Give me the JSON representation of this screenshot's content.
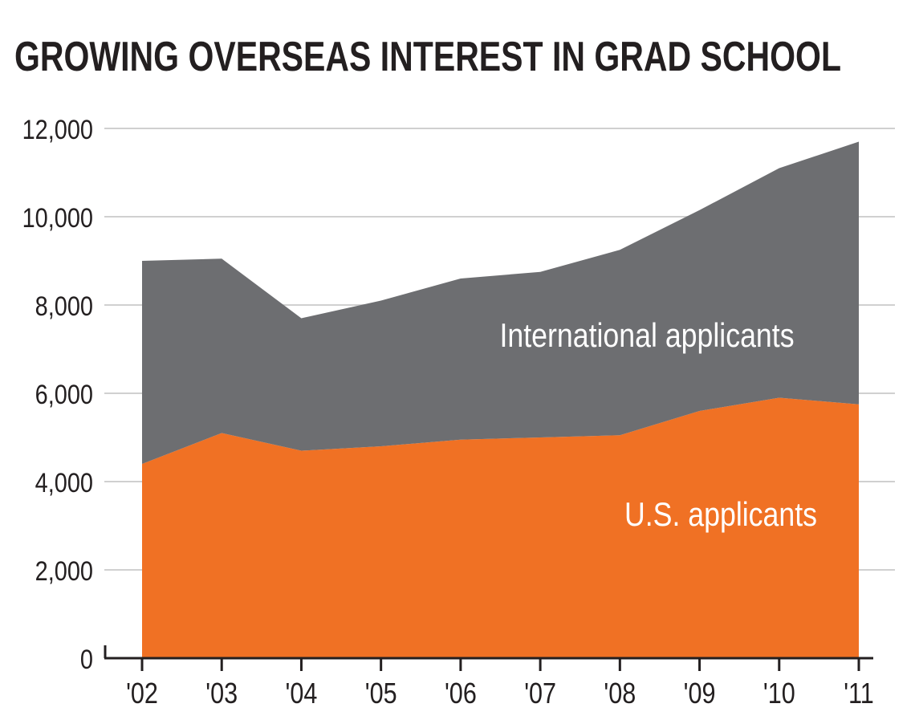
{
  "chart_data": {
    "type": "area",
    "stacked": true,
    "title": "GROWING OVERSEAS INTEREST IN GRAD SCHOOL",
    "xlabel": "",
    "ylabel": "",
    "categories": [
      "'02",
      "'03",
      "'04",
      "'05",
      "'06",
      "'07",
      "'08",
      "'09",
      "'10",
      "'11"
    ],
    "series": [
      {
        "name": "U.S. applicants",
        "color": "#f07124",
        "values": [
          4400,
          5100,
          4700,
          4800,
          4950,
          5000,
          5050,
          5600,
          5900,
          5750
        ]
      },
      {
        "name": "International applicants",
        "color": "#6d6e71",
        "values": [
          4600,
          3950,
          3000,
          3300,
          3650,
          3750,
          4200,
          4550,
          5200,
          5950
        ]
      }
    ],
    "ylim": [
      0,
      12000
    ],
    "yticks": [
      0,
      2000,
      4000,
      6000,
      8000,
      10000,
      12000
    ],
    "ytick_labels": [
      "0",
      "2,000",
      "4,000",
      "6,000",
      "8,000",
      "10,000",
      "12,000"
    ],
    "grid": true,
    "legend": "inline labels inside areas"
  }
}
